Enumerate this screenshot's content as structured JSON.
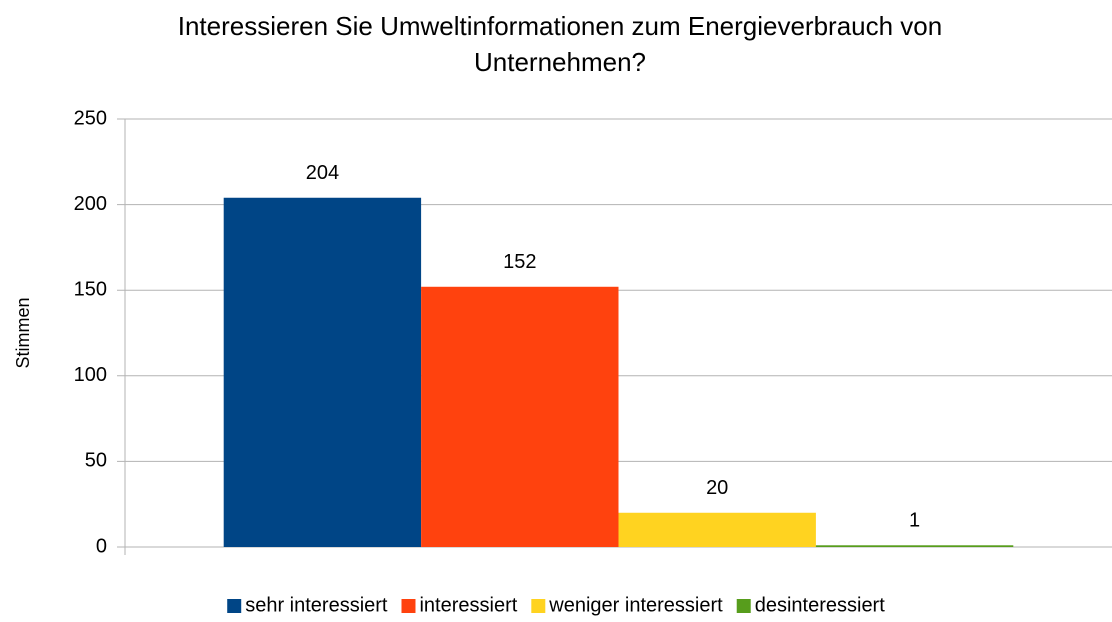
{
  "chart_data": {
    "type": "bar",
    "title": "Interessieren Sie Umweltinformationen zum Energieverbrauch von Unternehmen?",
    "y_label": "Stimmen",
    "categories": [
      null
    ],
    "series": [
      {
        "name": "sehr interessiert",
        "color": "#004586",
        "values": [
          204
        ]
      },
      {
        "name": "interessiert",
        "color": "#ff420e",
        "values": [
          152
        ]
      },
      {
        "name": "weniger interessiert",
        "color": "#ffd320",
        "values": [
          20
        ]
      },
      {
        "name": "desinteressiert",
        "color": "#579d1c",
        "values": [
          1
        ]
      }
    ],
    "ylim": [
      0,
      250
    ],
    "yticks": [
      0,
      50,
      100,
      150,
      200,
      250
    ],
    "grid": true,
    "legend": "bottom"
  }
}
